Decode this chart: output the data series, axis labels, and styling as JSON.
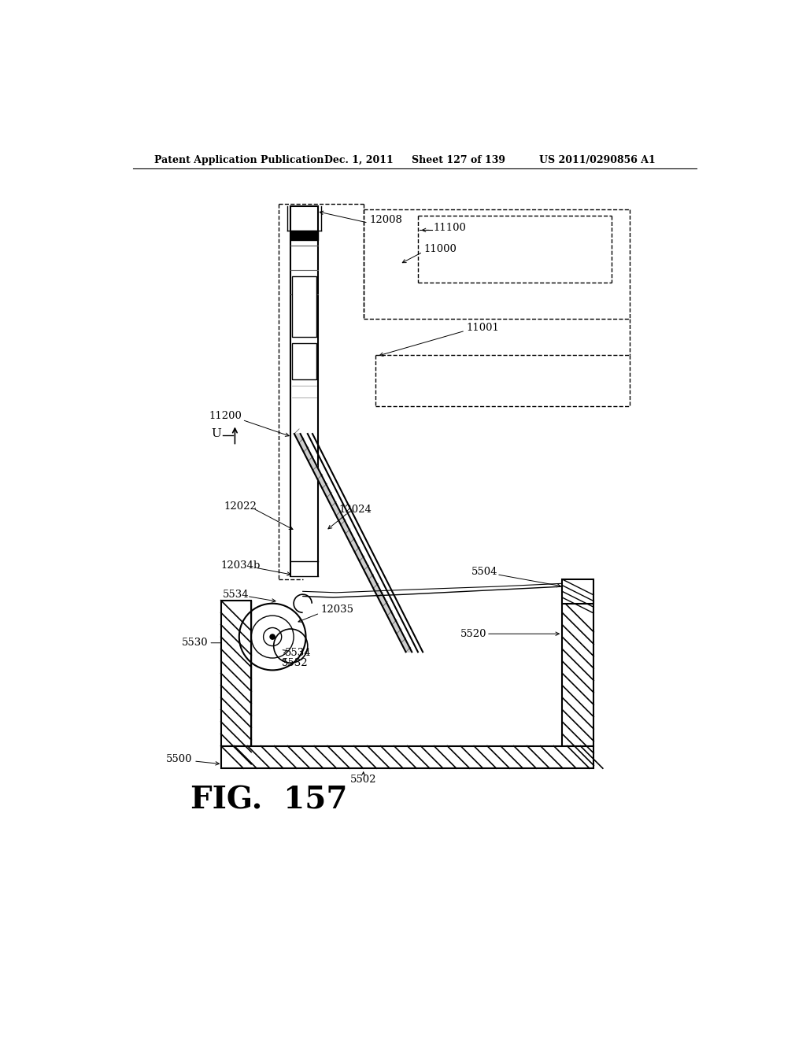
{
  "bg_color": "#ffffff",
  "header_text": "Patent Application Publication",
  "header_date": "Dec. 1, 2011",
  "header_sheet": "Sheet 127 of 139",
  "header_patent": "US 2011/0290856 A1",
  "fig_label": "FIG.  157"
}
